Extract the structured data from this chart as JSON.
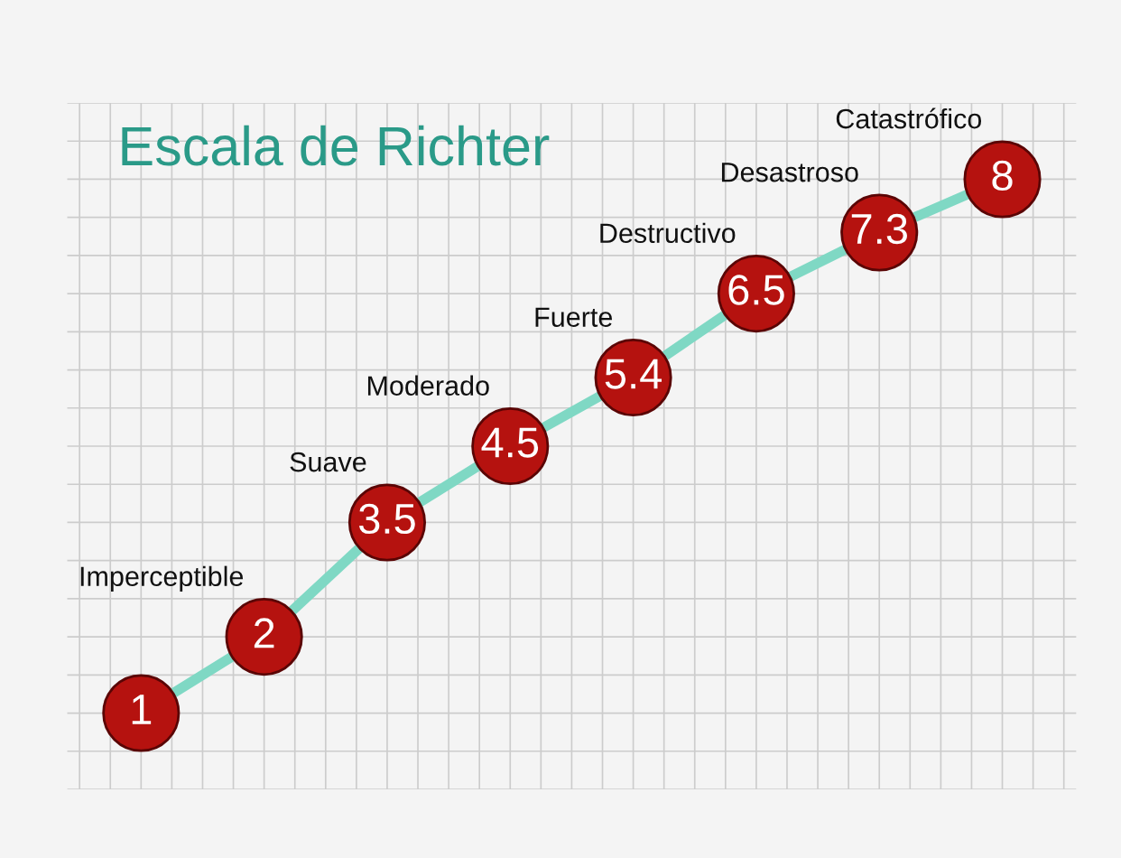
{
  "chart_data": {
    "type": "line",
    "title": "Escala de Richter",
    "categories": [
      null,
      null,
      null,
      null,
      null,
      null,
      null,
      null
    ],
    "series": [
      {
        "color": "#7fd8c4",
        "values": [
          1,
          2,
          3.5,
          4.5,
          5.4,
          6.5,
          7.3,
          8
        ]
      }
    ],
    "annotations": [
      "Imperceptible",
      "Suave",
      "Moderado",
      "Fuerte",
      "Destructivo",
      "Desastroso",
      "Catastrófico"
    ],
    "ylim": [
      0,
      9
    ],
    "marker": "circle",
    "data_labels": true,
    "grid": true,
    "tick_labels": false,
    "legend": false
  }
}
